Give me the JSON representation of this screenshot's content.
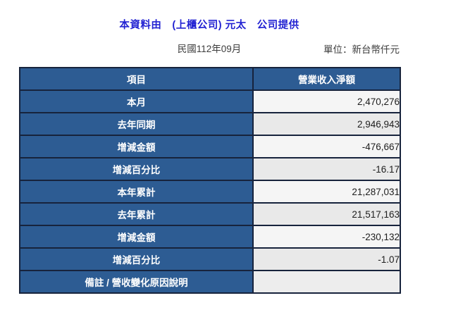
{
  "page": {
    "title": "本資料由　(上櫃公司) 元太　公司提供",
    "period": "民國112年09月",
    "unit_label": "單位：新台幣仟元"
  },
  "table": {
    "headers": [
      "項目",
      "營業收入淨額"
    ],
    "rows": [
      {
        "label": "本月",
        "value": "2,470,276"
      },
      {
        "label": "去年同期",
        "value": "2,946,943"
      },
      {
        "label": "增減金額",
        "value": "-476,667"
      },
      {
        "label": "增減百分比",
        "value": "-16.17"
      },
      {
        "label": "本年累計",
        "value": "21,287,031"
      },
      {
        "label": "去年累計",
        "value": "21,517,163"
      },
      {
        "label": "增減金額",
        "value": "-230,132"
      },
      {
        "label": "增減百分比",
        "value": "-1.07"
      },
      {
        "label": "備註 / 營收變化原因說明",
        "value": ""
      }
    ]
  },
  "colors": {
    "title_blue": "#2222d2",
    "header_bg": "#2d5c93",
    "border": "#17233c",
    "row_light": "#f5f5f5",
    "row_dark": "#e9e9e9",
    "row_note": "#ededed"
  }
}
